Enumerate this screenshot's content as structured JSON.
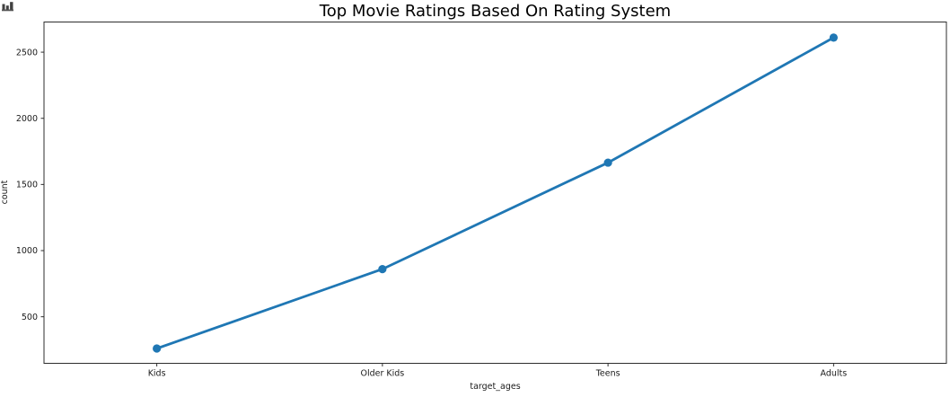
{
  "figure": {
    "corner_icon": "bar-chart-icon",
    "background": "#ffffff"
  },
  "chart_data": {
    "type": "line",
    "title": "Top Movie Ratings Based On Rating System",
    "xlabel": "target_ages",
    "ylabel": "count",
    "categories": [
      "Kids",
      "Older Kids",
      "Teens",
      "Adults"
    ],
    "values": [
      260,
      860,
      1665,
      2610
    ],
    "yticks": [
      500,
      1000,
      1500,
      2000,
      2500
    ],
    "ylim": [
      148,
      2728
    ],
    "line_color": "#1f77b4",
    "marker": "circle",
    "marker_radius": 4.6,
    "line_width": 2.8,
    "spine_color": "#2e2e2e",
    "tick_label_color": "#1a1a1a",
    "grid": false,
    "legend": "none"
  }
}
